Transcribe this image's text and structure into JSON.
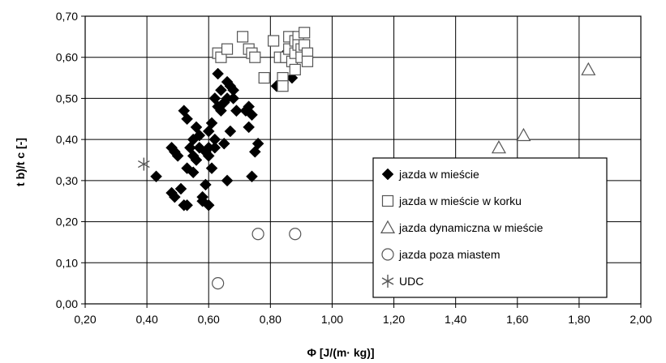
{
  "chart_data": {
    "type": "scatter",
    "title": "",
    "xlabel": "Φ [J/(m· kg)]",
    "ylabel": "t b)/t c [-]",
    "xlim": [
      0.2,
      2.0
    ],
    "ylim": [
      0.0,
      0.7
    ],
    "x_ticks": [
      "0,20",
      "0,40",
      "0,60",
      "0,80",
      "1,00",
      "1,20",
      "1,40",
      "1,60",
      "1,80",
      "2,00"
    ],
    "y_ticks": [
      "0,00",
      "0,10",
      "0,20",
      "0,30",
      "0,40",
      "0,50",
      "0,60",
      "0,70"
    ],
    "grid": true,
    "legend_position": "right",
    "series": [
      {
        "name": "jazda w mieście",
        "marker": "diamond",
        "points": [
          [
            0.43,
            0.31
          ],
          [
            0.48,
            0.27
          ],
          [
            0.49,
            0.26
          ],
          [
            0.48,
            0.38
          ],
          [
            0.49,
            0.37
          ],
          [
            0.5,
            0.36
          ],
          [
            0.51,
            0.28
          ],
          [
            0.52,
            0.24
          ],
          [
            0.52,
            0.47
          ],
          [
            0.53,
            0.45
          ],
          [
            0.53,
            0.24
          ],
          [
            0.53,
            0.33
          ],
          [
            0.54,
            0.38
          ],
          [
            0.55,
            0.36
          ],
          [
            0.55,
            0.4
          ],
          [
            0.55,
            0.32
          ],
          [
            0.56,
            0.43
          ],
          [
            0.56,
            0.35
          ],
          [
            0.57,
            0.38
          ],
          [
            0.57,
            0.41
          ],
          [
            0.58,
            0.25
          ],
          [
            0.58,
            0.26
          ],
          [
            0.59,
            0.29
          ],
          [
            0.59,
            0.37
          ],
          [
            0.6,
            0.38
          ],
          [
            0.6,
            0.24
          ],
          [
            0.6,
            0.36
          ],
          [
            0.6,
            0.42
          ],
          [
            0.61,
            0.44
          ],
          [
            0.61,
            0.33
          ],
          [
            0.62,
            0.38
          ],
          [
            0.62,
            0.4
          ],
          [
            0.62,
            0.5
          ],
          [
            0.63,
            0.48
          ],
          [
            0.63,
            0.56
          ],
          [
            0.64,
            0.47
          ],
          [
            0.64,
            0.52
          ],
          [
            0.65,
            0.49
          ],
          [
            0.65,
            0.39
          ],
          [
            0.66,
            0.3
          ],
          [
            0.66,
            0.54
          ],
          [
            0.66,
            0.5
          ],
          [
            0.67,
            0.53
          ],
          [
            0.67,
            0.42
          ],
          [
            0.68,
            0.52
          ],
          [
            0.68,
            0.5
          ],
          [
            0.69,
            0.47
          ],
          [
            0.69,
            0.47
          ],
          [
            0.72,
            0.47
          ],
          [
            0.73,
            0.43
          ],
          [
            0.73,
            0.48
          ],
          [
            0.74,
            0.46
          ],
          [
            0.74,
            0.31
          ],
          [
            0.75,
            0.37
          ],
          [
            0.76,
            0.39
          ],
          [
            0.82,
            0.53
          ],
          [
            0.84,
            0.55
          ],
          [
            0.85,
            0.61
          ],
          [
            0.87,
            0.55
          ]
        ]
      },
      {
        "name": "jazda w mieście w korku",
        "marker": "square",
        "points": [
          [
            0.63,
            0.61
          ],
          [
            0.64,
            0.6
          ],
          [
            0.66,
            0.62
          ],
          [
            0.71,
            0.65
          ],
          [
            0.73,
            0.62
          ],
          [
            0.74,
            0.61
          ],
          [
            0.75,
            0.6
          ],
          [
            0.78,
            0.55
          ],
          [
            0.81,
            0.64
          ],
          [
            0.83,
            0.6
          ],
          [
            0.84,
            0.55
          ],
          [
            0.85,
            0.6
          ],
          [
            0.86,
            0.65
          ],
          [
            0.86,
            0.62
          ],
          [
            0.87,
            0.59
          ],
          [
            0.88,
            0.64
          ],
          [
            0.88,
            0.61
          ],
          [
            0.89,
            0.65
          ],
          [
            0.89,
            0.63
          ],
          [
            0.9,
            0.62
          ],
          [
            0.9,
            0.6
          ],
          [
            0.91,
            0.66
          ],
          [
            0.91,
            0.63
          ],
          [
            0.92,
            0.61
          ],
          [
            0.92,
            0.59
          ],
          [
            0.84,
            0.53
          ],
          [
            0.88,
            0.57
          ]
        ]
      },
      {
        "name": "jazda dynamiczna w mieście",
        "marker": "triangle",
        "points": [
          [
            1.54,
            0.38
          ],
          [
            1.62,
            0.41
          ],
          [
            1.83,
            0.57
          ]
        ]
      },
      {
        "name": "jazda poza miastem",
        "marker": "circle",
        "points": [
          [
            0.76,
            0.17
          ],
          [
            0.88,
            0.17
          ],
          [
            0.63,
            0.05
          ]
        ]
      },
      {
        "name": "UDC",
        "marker": "star",
        "points": [
          [
            0.39,
            0.34
          ]
        ]
      }
    ]
  }
}
